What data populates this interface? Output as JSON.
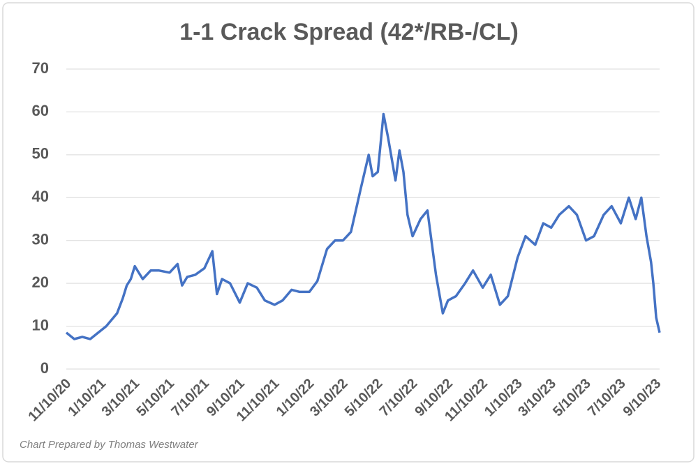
{
  "chart_data": {
    "type": "line",
    "title": "1-1 Crack Spread (42*/RB-/CL)",
    "footnote": "Chart Prepared by Thomas Westwater",
    "x": [
      "11/10/20",
      "11/24/20",
      "12/8/20",
      "12/22/20",
      "1/5/21",
      "1/19/21",
      "2/7/21",
      "2/17/21",
      "2/24/21",
      "3/3/21",
      "3/10/21",
      "3/24/21",
      "4/7/21",
      "4/21/21",
      "5/10/21",
      "5/24/21",
      "6/1/21",
      "6/10/21",
      "6/24/21",
      "7/10/21",
      "7/24/21",
      "8/1/21",
      "8/10/21",
      "8/24/21",
      "9/10/21",
      "9/24/21",
      "10/10/21",
      "10/24/21",
      "11/10/21",
      "11/24/21",
      "12/10/21",
      "12/24/21",
      "1/10/22",
      "1/24/22",
      "2/10/22",
      "2/24/22",
      "3/10/22",
      "3/24/22",
      "4/10/22",
      "4/24/22",
      "5/1/22",
      "5/10/22",
      "5/20/22",
      "5/28/22",
      "6/10/22",
      "6/17/22",
      "6/24/22",
      "7/1/22",
      "7/10/22",
      "7/24/22",
      "8/5/22",
      "8/20/22",
      "9/1/22",
      "9/10/22",
      "9/24/22",
      "10/10/22",
      "10/24/22",
      "11/10/22",
      "11/24/22",
      "12/10/22",
      "12/24/22",
      "1/10/23",
      "1/24/23",
      "2/10/23",
      "2/24/23",
      "3/10/23",
      "3/24/23",
      "4/10/23",
      "4/24/23",
      "5/10/23",
      "5/24/23",
      "6/10/23",
      "6/24/23",
      "7/10/23",
      "7/24/23",
      "8/5/23",
      "8/15/23",
      "8/24/23",
      "9/1/23",
      "9/5/23",
      "9/10/23",
      "9/16/23"
    ],
    "series": [
      {
        "name": "1-1 Crack Spread",
        "color": "#4472c4",
        "values": [
          8.5,
          7,
          7.5,
          7,
          8.5,
          10,
          13,
          16.5,
          19.5,
          21,
          24,
          21,
          23,
          23,
          22.5,
          24.5,
          19.5,
          21.5,
          22,
          23.5,
          27.5,
          17.5,
          21,
          20,
          15.5,
          20,
          19,
          16,
          15,
          16,
          18.5,
          18,
          18,
          20.5,
          28,
          30,
          30,
          32,
          42,
          50,
          45,
          46,
          59.5,
          54,
          44,
          51,
          46,
          36,
          31,
          35,
          37,
          22,
          13,
          16,
          17,
          20,
          23,
          19,
          22,
          15,
          17,
          26,
          31,
          29,
          34,
          33,
          36,
          38,
          36,
          30,
          31,
          36,
          38,
          34,
          40,
          35,
          40,
          31,
          25,
          20,
          12,
          8.5
        ]
      }
    ],
    "xlim": [
      "11/10/20",
      "9/16/23"
    ],
    "xticks": [
      "11/10/20",
      "1/10/21",
      "3/10/21",
      "5/10/21",
      "7/10/21",
      "9/10/21",
      "11/10/21",
      "1/10/22",
      "3/10/22",
      "5/10/22",
      "7/10/22",
      "9/10/22",
      "11/10/22",
      "1/10/23",
      "3/10/23",
      "5/10/23",
      "7/10/23",
      "9/10/23"
    ],
    "ylim": [
      0,
      70
    ],
    "yticks": [
      0,
      10,
      20,
      30,
      40,
      50,
      60,
      70
    ],
    "grid": true
  }
}
